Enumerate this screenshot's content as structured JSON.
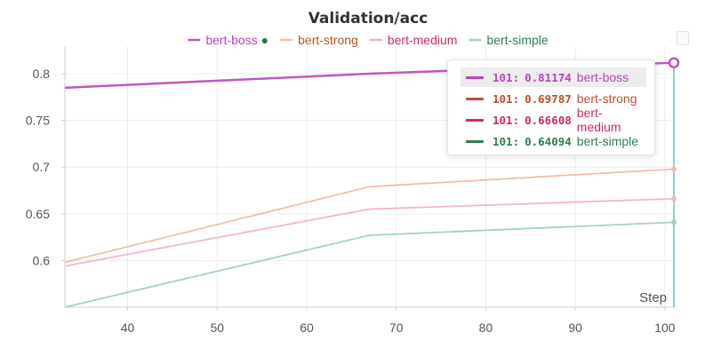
{
  "chart_data": {
    "type": "line",
    "title": "Validation/acc",
    "xlabel": "Step",
    "ylabel": "",
    "xlim": [
      33,
      101
    ],
    "ylim": [
      0.55,
      0.82
    ],
    "xticks": [
      40,
      50,
      60,
      70,
      80,
      90,
      100
    ],
    "yticks": [
      0.6,
      0.65,
      0.7,
      0.75,
      0.8
    ],
    "ytick_labels": [
      "0.6",
      "0.65",
      "0.7",
      "0.75",
      "0.8"
    ],
    "grid": true,
    "legend_position": "top-center",
    "legend_marker": "●",
    "series": [
      {
        "name": "bert-boss",
        "color": "#bb44bb",
        "line_color": "#c453c4",
        "emphasized": true,
        "x": [
          33,
          67,
          101
        ],
        "y": [
          0.785,
          0.8,
          0.81174
        ]
      },
      {
        "name": "bert-strong",
        "color": "#c0502a",
        "line_color": "#f0bea6",
        "emphasized": false,
        "x": [
          33,
          67,
          101
        ],
        "y": [
          0.598,
          0.679,
          0.69787
        ]
      },
      {
        "name": "bert-medium",
        "color": "#d02868",
        "line_color": "#f5b4ce",
        "emphasized": false,
        "x": [
          33,
          67,
          101
        ],
        "y": [
          0.594,
          0.655,
          0.66608
        ]
      },
      {
        "name": "bert-simple",
        "color": "#2e7d4f",
        "line_color": "#a4d4b8",
        "emphasized": false,
        "x": [
          33,
          67,
          101
        ],
        "y": [
          0.55,
          0.627,
          0.64094
        ]
      }
    ],
    "hover": {
      "step": "101",
      "rows": [
        {
          "step": "101",
          "value": "0.81174",
          "name": "bert-boss",
          "color": "#bb44bb",
          "highlight": true
        },
        {
          "step": "101",
          "value": "0.69787",
          "name": "bert-strong",
          "color": "#c0502a",
          "highlight": false
        },
        {
          "step": "101",
          "value": "0.66608",
          "name": "bert-medium",
          "color": "#d02868",
          "highlight": false
        },
        {
          "step": "101",
          "value": "0.64094",
          "name": "bert-simple",
          "color": "#2e7d4f",
          "highlight": false
        }
      ]
    }
  }
}
